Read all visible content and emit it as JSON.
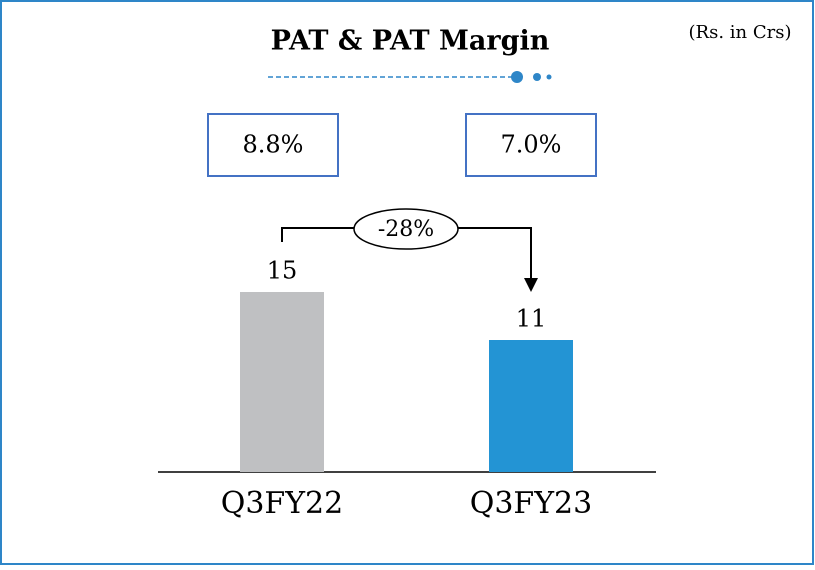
{
  "chart_data": {
    "type": "bar",
    "title": "PAT & PAT Margin",
    "unit_note": "(Rs. in Crs)",
    "categories": [
      "Q3FY22",
      "Q3FY23"
    ],
    "values": [
      15,
      11
    ],
    "colors": [
      "#bfc0c2",
      "#2394d4"
    ],
    "margin_labels": [
      "8.8%",
      "7.0%"
    ],
    "change_label": "-28%"
  }
}
